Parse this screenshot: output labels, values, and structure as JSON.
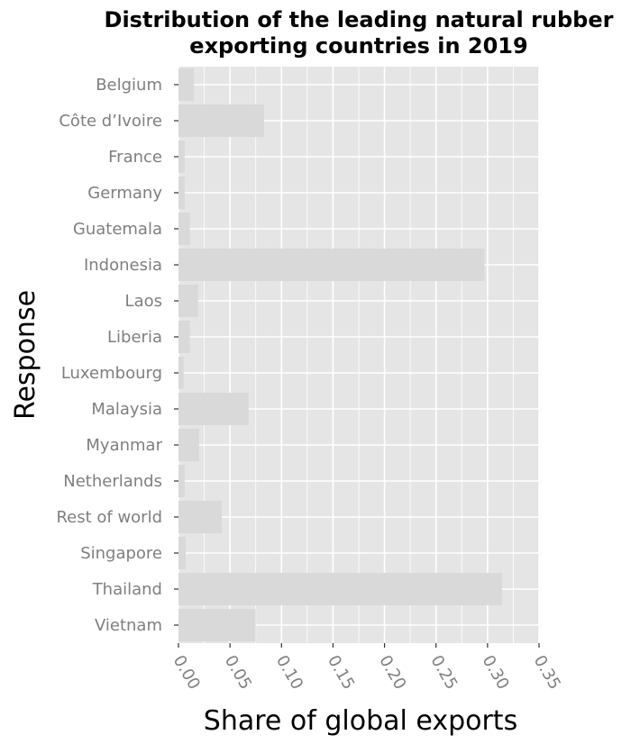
{
  "chart_data": {
    "type": "bar",
    "orientation": "horizontal",
    "title": "Distribution of the leading natural rubber exporting countries in 2019",
    "title_lines": [
      "Distribution of the leading natural rubber",
      "exporting countries in 2019"
    ],
    "xlabel": "Share of global exports",
    "ylabel": "Response",
    "categories": [
      "Belgium",
      "Côte d’Ivoire",
      "France",
      "Germany",
      "Guatemala",
      "Indonesia",
      "Laos",
      "Liberia",
      "Luxembourg",
      "Malaysia",
      "Myanmar",
      "Netherlands",
      "Rest of world",
      "Singapore",
      "Thailand",
      "Vietnam"
    ],
    "values": [
      0.015,
      0.083,
      0.006,
      0.006,
      0.011,
      0.297,
      0.019,
      0.011,
      0.005,
      0.068,
      0.02,
      0.006,
      0.042,
      0.007,
      0.314,
      0.075
    ],
    "xlim": [
      0,
      0.35
    ],
    "xticks": [
      0.0,
      0.05,
      0.1,
      0.15,
      0.2,
      0.25,
      0.3,
      0.35
    ],
    "xtick_labels": [
      "0.00",
      "0.05",
      "0.10",
      "0.15",
      "0.20",
      "0.25",
      "0.30",
      "0.35"
    ],
    "grid": true,
    "legend": "none",
    "colors": {
      "panel": "#e5e5e5",
      "grid": "#ffffff",
      "bar": "#d9d9d9",
      "tick_label": "#7f7f7f",
      "tick": "#333333"
    }
  }
}
